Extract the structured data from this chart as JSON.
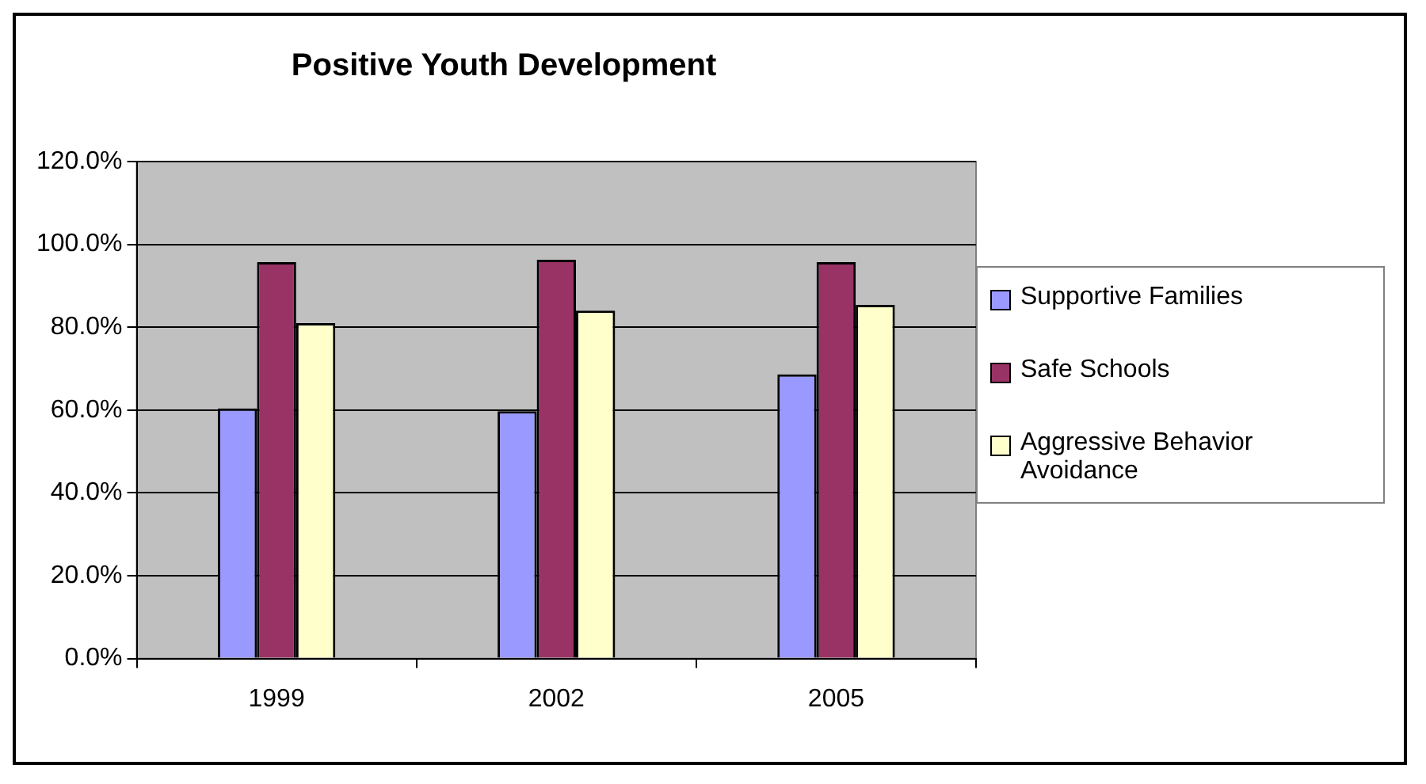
{
  "chart_data": {
    "type": "bar",
    "title": "Positive Youth Development",
    "categories": [
      "1999",
      "2002",
      "2005"
    ],
    "series": [
      {
        "name": "Supportive Families",
        "color": "#9999ff",
        "values": [
          60.4,
          59.7,
          68.6
        ]
      },
      {
        "name": "Safe Schools",
        "color": "#993366",
        "values": [
          95.7,
          96.3,
          95.7
        ]
      },
      {
        "name": "Aggressive Behavior Avoidance",
        "color": "#ffffcc",
        "values": [
          81.0,
          84.0,
          85.4
        ]
      }
    ],
    "ylim": [
      0,
      120
    ],
    "yticks": [
      {
        "value": 0,
        "label": "0.0%"
      },
      {
        "value": 20,
        "label": "20.0%"
      },
      {
        "value": 40,
        "label": "40.0%"
      },
      {
        "value": 60,
        "label": "60.0%"
      },
      {
        "value": 80,
        "label": "80.0%"
      },
      {
        "value": 100,
        "label": "100.0%"
      },
      {
        "value": 120,
        "label": "120.0%"
      }
    ],
    "grid": "y",
    "legend": "right"
  }
}
